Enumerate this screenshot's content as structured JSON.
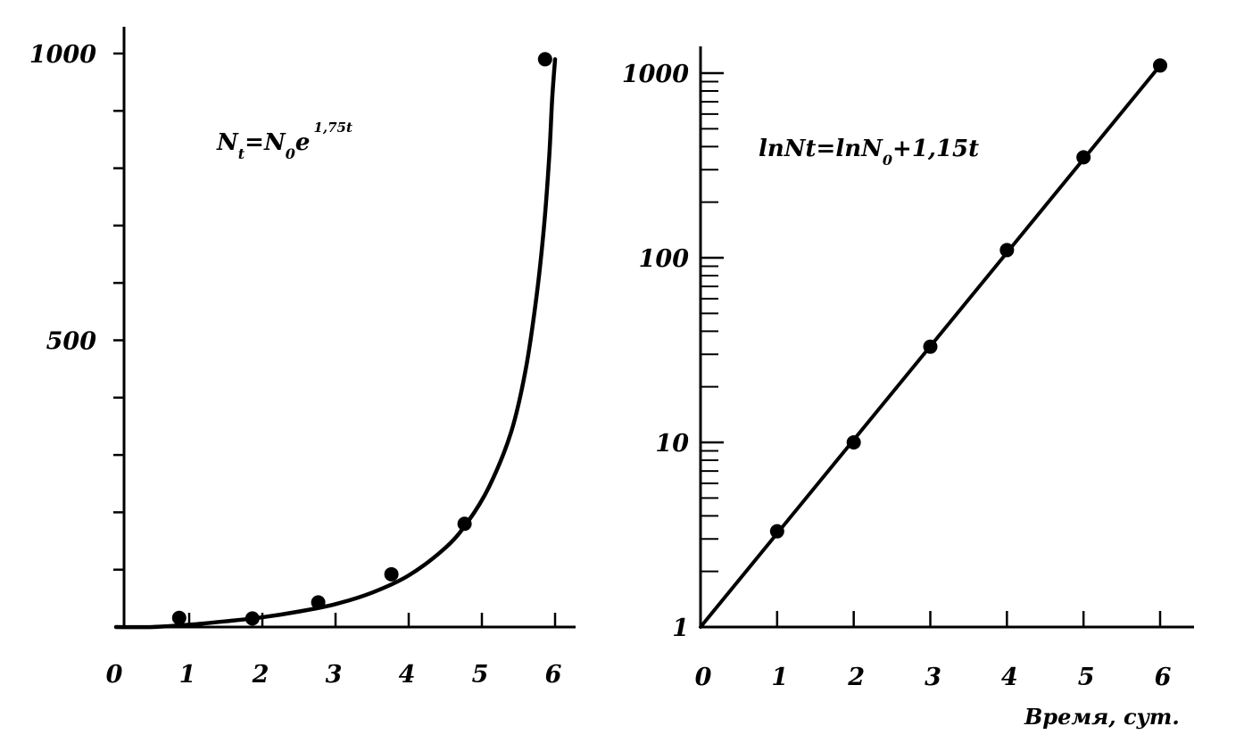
{
  "chart_data": [
    {
      "type": "line",
      "title": "",
      "xlabel": "",
      "ylabel": "",
      "xlim": [
        0,
        6
      ],
      "ylim": [
        0,
        1000
      ],
      "y_scale": "linear",
      "grid": false,
      "x_ticks": [
        "0",
        "1",
        "2",
        "3",
        "4",
        "5",
        "6"
      ],
      "y_tick_labels": [
        {
          "value": 500,
          "label": "500"
        },
        {
          "value": 1000,
          "label": "1000"
        }
      ],
      "y_minor_ticks": [
        100,
        200,
        300,
        400,
        600,
        700,
        800,
        900
      ],
      "formula": {
        "parts": [
          "N",
          "t",
          "=N",
          "0",
          "e",
          "1,75t"
        ]
      },
      "series": [
        {
          "x": [
            0.9,
            1.9,
            2.8,
            3.8,
            4.8,
            5.9
          ],
          "y": [
            16,
            15,
            43,
            92,
            180,
            990
          ],
          "marker": "circle"
        }
      ],
      "curve": {
        "x": [
          0,
          0.5,
          1.0,
          1.5,
          2.0,
          2.5,
          3.0,
          3.5,
          4.0,
          4.5,
          4.8,
          5.1,
          5.4,
          5.6,
          5.75,
          5.85,
          5.92,
          5.96,
          6.0
        ],
        "y": [
          0,
          0,
          4,
          10,
          17,
          27,
          40,
          60,
          90,
          138,
          182,
          245,
          340,
          450,
          580,
          700,
          820,
          920,
          990
        ]
      }
    },
    {
      "type": "line",
      "title": "",
      "xlabel": "Время, сут.",
      "ylabel": "",
      "xlim": [
        0,
        6
      ],
      "ylim": [
        1,
        1000
      ],
      "y_scale": "log",
      "grid": false,
      "x_ticks": [
        "0",
        "1",
        "2",
        "3",
        "4",
        "5",
        "6"
      ],
      "y_tick_labels": [
        {
          "value": 1,
          "label": "1"
        },
        {
          "value": 10,
          "label": "10"
        },
        {
          "value": 100,
          "label": "100"
        },
        {
          "value": 1000,
          "label": "1000"
        }
      ],
      "formula": {
        "parts": [
          "lnNt=lnN",
          "0",
          "+1,15t"
        ]
      },
      "series": [
        {
          "x": [
            1,
            2,
            3,
            4,
            5,
            6
          ],
          "y": [
            3.3,
            10,
            33,
            110,
            350,
            1100
          ],
          "marker": "circle"
        }
      ],
      "fit_line": {
        "x": [
          0,
          6
        ],
        "y": [
          1,
          1100
        ]
      }
    }
  ]
}
